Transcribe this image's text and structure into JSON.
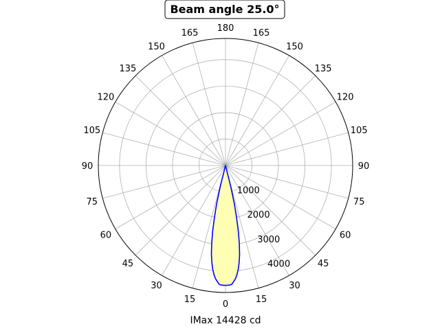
{
  "chart_data": {
    "type": "polar",
    "title": "Beam angle 25.0°",
    "xlabel": "IMax 14428 cd",
    "angle_tick_labels": [
      "0",
      "15",
      "30",
      "45",
      "60",
      "75",
      "90",
      "105",
      "120",
      "135",
      "150",
      "165",
      "180",
      "165",
      "150",
      "135",
      "120",
      "105",
      "90",
      "75",
      "60",
      "45",
      "30",
      "15"
    ],
    "angle_ticks_deg": [
      0,
      15,
      30,
      45,
      60,
      75,
      90,
      105,
      120,
      135,
      150,
      165,
      180,
      195,
      210,
      225,
      240,
      255,
      270,
      285,
      300,
      315,
      330,
      345
    ],
    "radial_tick_labels": [
      "1000",
      "2000",
      "3000",
      "4000"
    ],
    "radial_ticks": [
      1000,
      2000,
      3000,
      4000
    ],
    "rlim": [
      0,
      4800
    ],
    "grid": true,
    "series": [
      {
        "angles_deg": [
          -15,
          -14,
          -13,
          -12,
          -11,
          -10,
          -9,
          -8,
          -7,
          -6,
          -5,
          -4,
          -3,
          -2,
          -1,
          0,
          1,
          2,
          3,
          4,
          5,
          6,
          7,
          8,
          9,
          10,
          11,
          12,
          13,
          14,
          15
        ],
        "values": [
          0,
          800,
          1500,
          2000,
          2550,
          3000,
          3400,
          3700,
          3950,
          4150,
          4300,
          4400,
          4500,
          4520,
          4530,
          4530,
          4530,
          4520,
          4500,
          4400,
          4300,
          4150,
          3950,
          3700,
          3400,
          3000,
          2550,
          2000,
          1500,
          800,
          0
        ],
        "line_color": "#0000ff",
        "fill_color": "#ffffb3"
      }
    ]
  }
}
